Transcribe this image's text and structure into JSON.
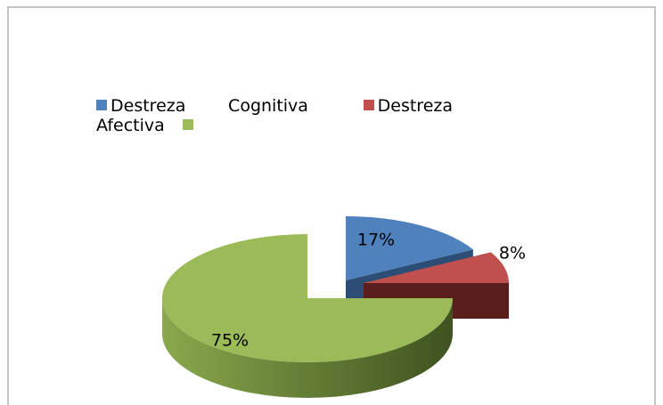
{
  "chart_data": {
    "type": "pie",
    "categories": [
      "Destreza Cognitiva",
      "Destreza Afectiva",
      null
    ],
    "values": [
      17,
      8,
      75
    ],
    "value_labels": [
      "17%",
      "8%",
      "75%"
    ],
    "colors": [
      "#4f81bd",
      "#c0504d",
      "#9bbb59"
    ],
    "legend": "top"
  }
}
